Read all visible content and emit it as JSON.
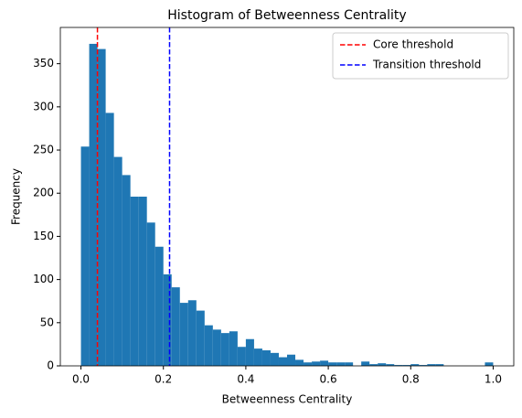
{
  "chart_data": {
    "type": "histogram",
    "title": "Histogram of Betweenness Centrality",
    "x_label": "Betweenness Centrality",
    "y_label": "Frequency",
    "bins": [
      0,
      0.02,
      0.04,
      0.06,
      0.08,
      0.1,
      0.12,
      0.14,
      0.16,
      0.18,
      0.2,
      0.22,
      0.24,
      0.26,
      0.28,
      0.3,
      0.32,
      0.34,
      0.36,
      0.38,
      0.4,
      0.42,
      0.44,
      0.46,
      0.48,
      0.5,
      0.52,
      0.54,
      0.56,
      0.58,
      0.6,
      0.62,
      0.64,
      0.66,
      0.68,
      0.7,
      0.72,
      0.74,
      0.76,
      0.78,
      0.8,
      0.82,
      0.84,
      0.86,
      0.88,
      0.9,
      0.92,
      0.94,
      0.96,
      0.98,
      1
    ],
    "values": [
      254,
      373,
      367,
      293,
      242,
      221,
      196,
      196,
      166,
      138,
      106,
      91,
      73,
      76,
      64,
      47,
      42,
      38,
      40,
      22,
      31,
      20,
      18,
      15,
      10,
      13,
      7,
      4,
      5,
      6,
      4,
      4,
      4,
      0,
      5,
      2,
      3,
      2,
      1,
      1,
      2,
      1,
      2,
      2,
      0,
      0,
      0,
      0,
      0,
      4
    ],
    "color": "#1f77b4",
    "thresholds": [
      {
        "name": "Core threshold",
        "color": "#ff0000",
        "x": 0.04
      },
      {
        "name": "Transition threshold",
        "color": "#0000ff",
        "x": 0.215
      }
    ],
    "xlim": [
      -0.05,
      1.05
    ],
    "ylim": [
      0,
      392
    ],
    "xticks": [
      {
        "value": 0,
        "label": "0.0"
      },
      0.2,
      0.4,
      0.6,
      0.8,
      {
        "value": 1,
        "label": "1.0"
      }
    ],
    "yticks": [
      0,
      50,
      100,
      150,
      200,
      250,
      300,
      350
    ],
    "legend": "upper right"
  }
}
